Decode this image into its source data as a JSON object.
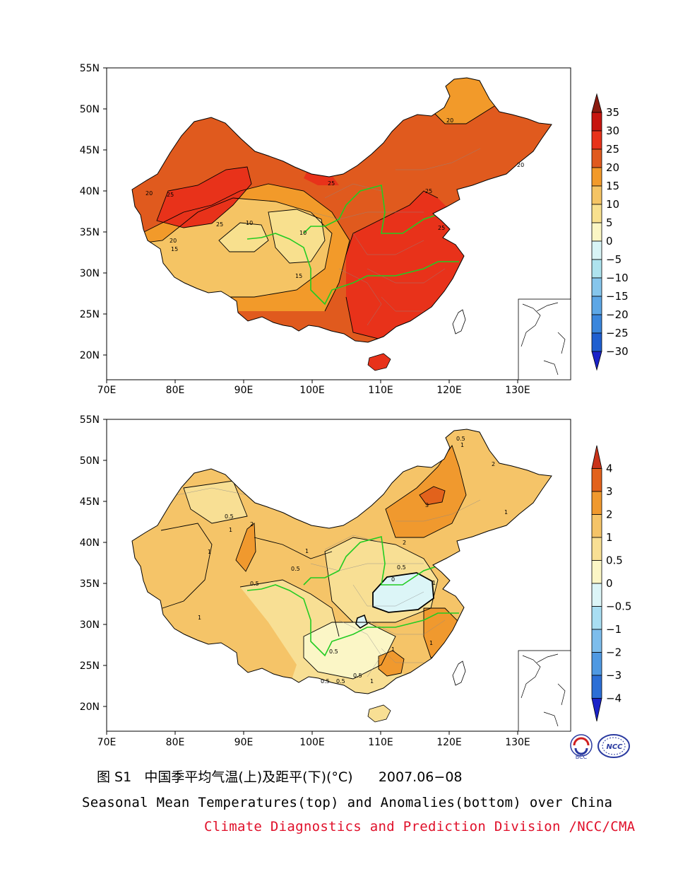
{
  "maps": [
    {
      "name": "mean-temperature",
      "lat_ticks": [
        "55N",
        "50N",
        "45N",
        "40N",
        "35N",
        "30N",
        "25N",
        "20N"
      ],
      "lon_ticks": [
        "70E",
        "80E",
        "90E",
        "100E",
        "110E",
        "120E",
        "130E"
      ],
      "colorbar": {
        "labels": [
          "35",
          "30",
          "25",
          "20",
          "15",
          "10",
          "5",
          "0",
          "−5",
          "−10",
          "−15",
          "−20",
          "−25",
          "−30"
        ],
        "colors": [
          "#8b1b10",
          "#c7150f",
          "#e8321a",
          "#e05a1e",
          "#f29a2a",
          "#f5c464",
          "#f8e08e",
          "#fbf6c4",
          "#d8f4f6",
          "#aee3ee",
          "#86c6ec",
          "#5da7e6",
          "#3a86dc",
          "#1f5fd0",
          "#1a22c8"
        ]
      },
      "contour_labels": [
        "20",
        "20",
        "25",
        "25",
        "25",
        "25",
        "25",
        "20",
        "10",
        "10",
        "15",
        "15",
        "20"
      ]
    },
    {
      "name": "temperature-anomaly",
      "lat_ticks": [
        "55N",
        "50N",
        "45N",
        "40N",
        "35N",
        "30N",
        "25N",
        "20N"
      ],
      "lon_ticks": [
        "70E",
        "80E",
        "90E",
        "100E",
        "110E",
        "120E",
        "130E"
      ],
      "colorbar": {
        "labels": [
          "4",
          "3",
          "2",
          "1",
          "0.5",
          "0",
          "−0.5",
          "−1",
          "−2",
          "−3",
          "−4"
        ],
        "colors": [
          "#c9331a",
          "#e2621c",
          "#f0992e",
          "#f5c468",
          "#f8df94",
          "#fbf6c6",
          "#dcf5f7",
          "#a9def2",
          "#7dbdec",
          "#4f99e2",
          "#2c6fd6",
          "#1a22c8"
        ]
      },
      "contour_labels": [
        "0.5",
        "1",
        "2",
        "1",
        "0.5",
        "1",
        "2",
        "1",
        "0.5",
        "1",
        "0.5",
        "1",
        "2",
        "3",
        "1",
        "0.5",
        "0",
        "1",
        "0.5",
        "0.5",
        "0.5",
        "0.5",
        "1",
        "1"
      ]
    }
  ],
  "caption": {
    "figure_no": "图 S1",
    "title_cn": "中国季平均气温(上)及距平(下)(°C)",
    "period": "2007.06−08",
    "title_en": "Seasonal Mean Temperatures(top) and Anomalies(bottom) over China",
    "credit": "Climate Diagnostics and Prediction Division /NCC/CMA"
  },
  "logos": {
    "left": "BCC",
    "right": "NCC"
  }
}
